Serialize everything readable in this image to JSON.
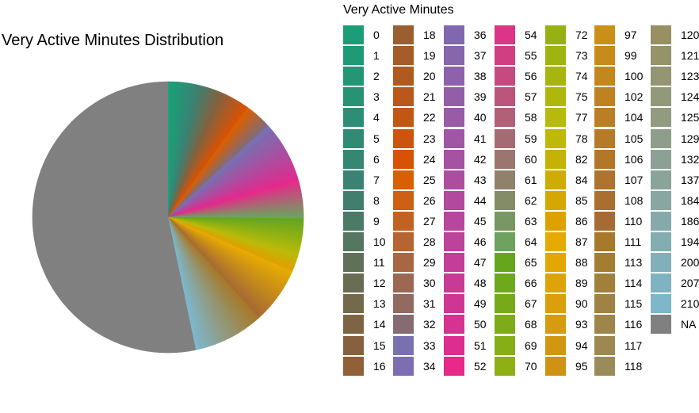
{
  "chart_data": {
    "type": "pie",
    "title": "Very Active Minutes Distribution",
    "legend_title": "Very Active Minutes",
    "legend_placement": "right",
    "categories": [
      "0",
      "1",
      "2",
      "3",
      "4",
      "5",
      "6",
      "7",
      "8",
      "9",
      "10",
      "11",
      "12",
      "13",
      "14",
      "15",
      "16",
      "18",
      "19",
      "20",
      "21",
      "22",
      "23",
      "24",
      "25",
      "26",
      "27",
      "28",
      "29",
      "30",
      "31",
      "32",
      "33",
      "34",
      "36",
      "37",
      "38",
      "39",
      "40",
      "41",
      "42",
      "43",
      "44",
      "45",
      "46",
      "47",
      "48",
      "49",
      "50",
      "51",
      "52",
      "54",
      "55",
      "56",
      "57",
      "58",
      "59",
      "60",
      "61",
      "62",
      "63",
      "64",
      "65",
      "66",
      "67",
      "68",
      "69",
      "70",
      "72",
      "73",
      "74",
      "75",
      "77",
      "78",
      "82",
      "84",
      "85",
      "86",
      "87",
      "88",
      "89",
      "90",
      "93",
      "94",
      "95",
      "97",
      "99",
      "100",
      "102",
      "104",
      "105",
      "106",
      "107",
      "108",
      "110",
      "111",
      "113",
      "114",
      "115",
      "116",
      "117",
      "118",
      "120",
      "121",
      "123",
      "124",
      "125",
      "129",
      "132",
      "137",
      "184",
      "186",
      "194",
      "200",
      "207",
      "210",
      "NA"
    ],
    "values": [
      5,
      4,
      3,
      3,
      3,
      3,
      3,
      3,
      3,
      3,
      3,
      3,
      3,
      3,
      3,
      3,
      3,
      3,
      3,
      3,
      3,
      3,
      3,
      3,
      3,
      3,
      3,
      3,
      3,
      3,
      3,
      3,
      3,
      3,
      3,
      3,
      3,
      3,
      3,
      3,
      3,
      3,
      3,
      3,
      3,
      3,
      3,
      3,
      3,
      3,
      3,
      3,
      3,
      3,
      3,
      3,
      3,
      3,
      3,
      3,
      3,
      3,
      3,
      3,
      3,
      3,
      3,
      3,
      3,
      3,
      3,
      3,
      3,
      3,
      3,
      3,
      3,
      3,
      3,
      3,
      3,
      3,
      3,
      3,
      3,
      3,
      3,
      3,
      3,
      3,
      3,
      3,
      3,
      3,
      3,
      3,
      3,
      3,
      3,
      3,
      3,
      3,
      3,
      3,
      3,
      3,
      3,
      3,
      3,
      3,
      3,
      3,
      3,
      3,
      3,
      3,
      400
    ],
    "colors": [
      "#1b9e77",
      "#1f9a76",
      "#249676",
      "#289275",
      "#2d8e75",
      "#318a74",
      "#368674",
      "#3a8273",
      "#417e6e",
      "#4b7a67",
      "#557660",
      "#5f7259",
      "#696e52",
      "#73694b",
      "#7d6544",
      "#87613d",
      "#916036",
      "#9b5e2f",
      "#a55c28",
      "#af5a21",
      "#b9581a",
      "#c35613",
      "#cd540c",
      "#d75205",
      "#d95f02",
      "#cd6012",
      "#c16222",
      "#b56432",
      "#a96642",
      "#9d6852",
      "#916a62",
      "#856c72",
      "#7970b0",
      "#7c6eb0",
      "#8168ae",
      "#8766ac",
      "#8d62aa",
      "#935ea8",
      "#995aa6",
      "#9f56a4",
      "#a552a2",
      "#ab4ea0",
      "#b14a9e",
      "#b7469c",
      "#bd429a",
      "#c33e98",
      "#c93a96",
      "#cf3694",
      "#d53292",
      "#db2e90",
      "#e7298a",
      "#dc3487",
      "#d13f83",
      "#c64a7f",
      "#bb557b",
      "#b06077",
      "#a56b73",
      "#9a766f",
      "#8f816b",
      "#848c67",
      "#799763",
      "#6ea25f",
      "#66a61e",
      "#6ea81c",
      "#76aa1a",
      "#7eac18",
      "#86ae16",
      "#8eb014",
      "#96b212",
      "#9eb410",
      "#a6b60e",
      "#aeb80c",
      "#b6ba0a",
      "#beb808",
      "#c6b206",
      "#ceac04",
      "#d6a602",
      "#dea200",
      "#e6ab02",
      "#e2a705",
      "#dea308",
      "#da9f0b",
      "#d69b0e",
      "#d29711",
      "#ce9314",
      "#ca8f17",
      "#c68b1a",
      "#c2871d",
      "#be8320",
      "#ba7f23",
      "#b67b26",
      "#b27729",
      "#ae732c",
      "#aa6f2f",
      "#a66b32",
      "#a67a2a",
      "#a47d32",
      "#a2803a",
      "#a08342",
      "#9e864a",
      "#9c8952",
      "#9a8c5a",
      "#988f62",
      "#96926a",
      "#949572",
      "#92987a",
      "#909b82",
      "#8e9e8a",
      "#8ca192",
      "#8aa49a",
      "#88a7a2",
      "#86aaaa",
      "#84adb2",
      "#82b0ba",
      "#80b3c2",
      "#7eb6ca",
      "#808080"
    ]
  }
}
